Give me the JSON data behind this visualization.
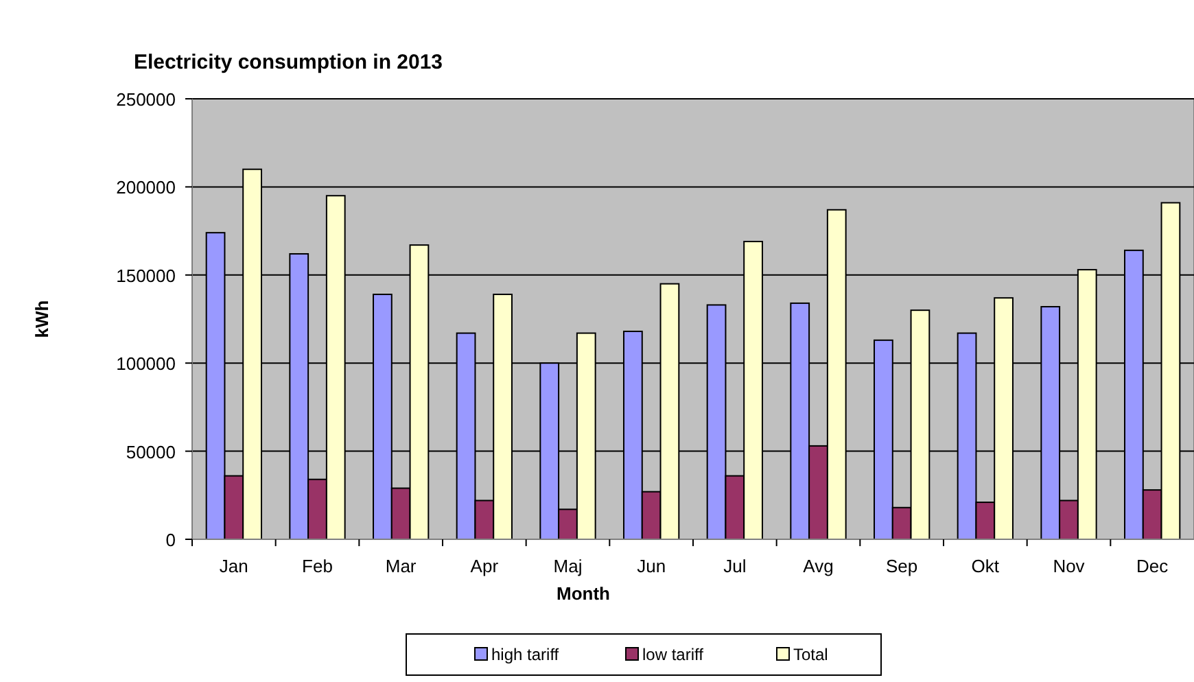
{
  "chart_data": {
    "type": "bar",
    "title": "Electricity consumption in 2013",
    "xlabel": "Month",
    "ylabel": "kWh",
    "categories": [
      "Jan",
      "Feb",
      "Mar",
      "Apr",
      "Maj",
      "Jun",
      "Jul",
      "Avg",
      "Sep",
      "Okt",
      "Nov",
      "Dec"
    ],
    "series": [
      {
        "name": "high tariff",
        "color": "#9999ff",
        "values": [
          174000,
          162000,
          139000,
          117000,
          100000,
          118000,
          133000,
          134000,
          113000,
          117000,
          132000,
          164000
        ]
      },
      {
        "name": "low tariff",
        "color": "#993366",
        "values": [
          36000,
          34000,
          29000,
          22000,
          17000,
          27000,
          36000,
          53000,
          18000,
          21000,
          22000,
          28000
        ]
      },
      {
        "name": "Total",
        "color": "#ffffcc",
        "values": [
          210000,
          195000,
          167000,
          139000,
          117000,
          145000,
          169000,
          187000,
          130000,
          137000,
          153000,
          191000
        ]
      }
    ],
    "ylim": [
      0,
      250000
    ],
    "yticks": [
      0,
      50000,
      100000,
      150000,
      200000,
      250000
    ],
    "grid": "y",
    "legend": "bottom"
  }
}
